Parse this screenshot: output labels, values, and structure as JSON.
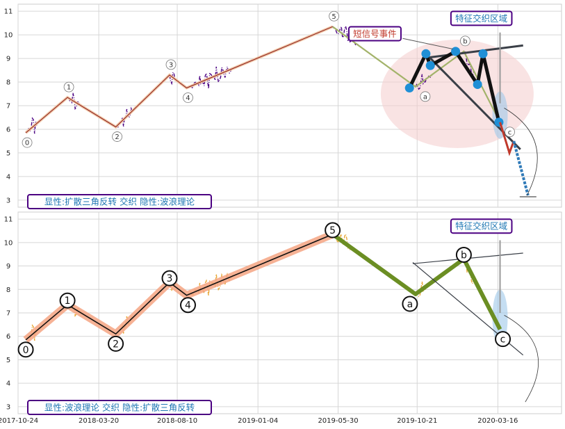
{
  "colors": {
    "price_top": "#4b0082",
    "price_bottom": "#e8a838",
    "wave_top": "#8b1a1a",
    "wave_bottom_band": "#f4a582",
    "abc_line": "#6b8e23",
    "blue_dot": "#1f8fd6",
    "trend_line": "#3a3f47",
    "circle_fill": "#f4cccc",
    "box_border": "#4b0082",
    "label_blue": "#1f77b4",
    "label_red": "#c0392b"
  },
  "chart_data": [
    {
      "type": "line",
      "title": "",
      "xlabel": "",
      "ylabel": "",
      "ylim": [
        2.7,
        11.3
      ],
      "yticks": [
        3,
        4,
        5,
        6,
        7,
        8,
        9,
        10,
        11
      ],
      "grid": true,
      "x_range": [
        "2017-10-24",
        "2020-07-10"
      ],
      "bottom_label": "显性:扩散三角反转 交织 隐性:波浪理论",
      "feature_label": "特征交织区域",
      "signal_label": "短信号事件",
      "wave_points": [
        {
          "label": "0",
          "date": "2017-11-07",
          "value": 5.85
        },
        {
          "label": "1",
          "date": "2018-01-22",
          "value": 7.35
        },
        {
          "label": "2",
          "date": "2018-04-20",
          "value": 6.1
        },
        {
          "label": "3",
          "date": "2018-07-27",
          "value": 8.3
        },
        {
          "label": "4",
          "date": "2018-08-27",
          "value": 7.75
        },
        {
          "label": "5",
          "date": "2019-05-20",
          "value": 10.35
        },
        {
          "label": "a",
          "date": "2019-10-18",
          "value": 7.8
        },
        {
          "label": "b",
          "date": "2020-01-14",
          "value": 9.3
        },
        {
          "label": "c",
          "date": "2020-03-20",
          "value": 6.3
        }
      ],
      "pattern_points": [
        {
          "date": "2019-10-07",
          "value": 7.75
        },
        {
          "date": "2019-11-06",
          "value": 9.2
        },
        {
          "date": "2019-11-14",
          "value": 8.7
        },
        {
          "date": "2019-12-30",
          "value": 9.3
        },
        {
          "date": "2020-02-08",
          "value": 7.9
        },
        {
          "date": "2020-02-18",
          "value": 9.2
        },
        {
          "date": "2020-03-18",
          "value": 6.3
        }
      ],
      "trend_lines": [
        {
          "from": {
            "date": "2019-11-06",
            "value": 9.2
          },
          "to": {
            "date": "2020-04-26",
            "value": 5.15
          }
        },
        {
          "from": {
            "date": "2019-11-14",
            "value": 9.05
          },
          "to": {
            "date": "2020-05-01",
            "value": 9.55
          }
        }
      ],
      "projection": [
        {
          "date": "2020-03-20",
          "value": 6.3
        },
        {
          "date": "2020-04-06",
          "value": 5.0
        },
        {
          "date": "2020-04-14",
          "value": 5.5
        },
        {
          "date": "2020-05-10",
          "value": 3.2
        }
      ]
    },
    {
      "type": "line",
      "title": "",
      "xlabel": "",
      "ylabel": "",
      "ylim": [
        2.7,
        11.3
      ],
      "yticks": [
        3,
        4,
        5,
        6,
        7,
        8,
        9,
        10,
        11
      ],
      "grid": true,
      "x_range": [
        "2017-10-24",
        "2020-07-10"
      ],
      "xticks": [
        "2017-10-24",
        "2018-03-20",
        "2018-08-10",
        "2019-01-04",
        "2019-05-30",
        "2019-10-21",
        "2020-03-16"
      ],
      "bottom_label": "显性:波浪理论 交织 隐性:扩散三角反转",
      "feature_label": "特征交织区域",
      "wave_points": [
        {
          "label": "0",
          "date": "2017-11-07",
          "value": 5.85
        },
        {
          "label": "1",
          "date": "2018-01-22",
          "value": 7.35
        },
        {
          "label": "2",
          "date": "2018-04-20",
          "value": 6.1
        },
        {
          "label": "3",
          "date": "2018-07-27",
          "value": 8.3
        },
        {
          "label": "4",
          "date": "2018-08-27",
          "value": 7.75
        },
        {
          "label": "5",
          "date": "2019-05-20",
          "value": 10.35
        },
        {
          "label": "a",
          "date": "2019-10-18",
          "value": 7.8
        },
        {
          "label": "b",
          "date": "2020-01-14",
          "value": 9.3
        },
        {
          "label": "c",
          "date": "2020-03-20",
          "value": 6.3
        }
      ],
      "trend_lines": [
        {
          "from": {
            "date": "2019-10-13",
            "value": 9.15
          },
          "to": {
            "date": "2020-05-01",
            "value": 5.2
          }
        },
        {
          "from": {
            "date": "2019-10-13",
            "value": 9.1
          },
          "to": {
            "date": "2020-05-01",
            "value": 9.55
          }
        }
      ]
    }
  ]
}
